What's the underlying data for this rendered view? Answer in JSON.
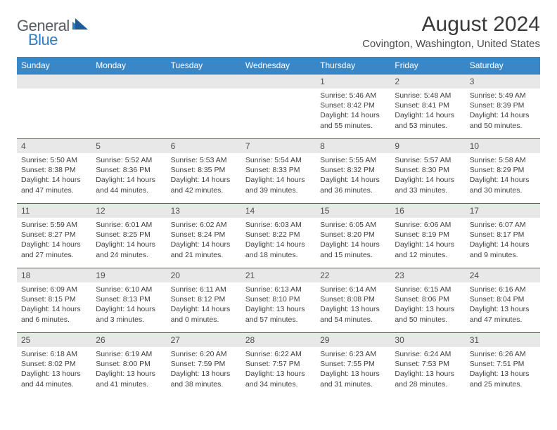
{
  "logo": {
    "general": "General",
    "blue": "Blue"
  },
  "title": "August 2024",
  "location": "Covington, Washington, United States",
  "colors": {
    "header_bg": "#3a87c8",
    "header_fg": "#ffffff",
    "daynum_bg": "#e8e8e8",
    "cell_border": "#3a6a9a",
    "logo_gray": "#555b61",
    "logo_blue": "#2f7bbf"
  },
  "days_of_week": [
    "Sunday",
    "Monday",
    "Tuesday",
    "Wednesday",
    "Thursday",
    "Friday",
    "Saturday"
  ],
  "weeks": [
    [
      null,
      null,
      null,
      null,
      {
        "d": "1",
        "sr": "5:46 AM",
        "ss": "8:42 PM",
        "dl": "14 hours and 55 minutes."
      },
      {
        "d": "2",
        "sr": "5:48 AM",
        "ss": "8:41 PM",
        "dl": "14 hours and 53 minutes."
      },
      {
        "d": "3",
        "sr": "5:49 AM",
        "ss": "8:39 PM",
        "dl": "14 hours and 50 minutes."
      }
    ],
    [
      {
        "d": "4",
        "sr": "5:50 AM",
        "ss": "8:38 PM",
        "dl": "14 hours and 47 minutes."
      },
      {
        "d": "5",
        "sr": "5:52 AM",
        "ss": "8:36 PM",
        "dl": "14 hours and 44 minutes."
      },
      {
        "d": "6",
        "sr": "5:53 AM",
        "ss": "8:35 PM",
        "dl": "14 hours and 42 minutes."
      },
      {
        "d": "7",
        "sr": "5:54 AM",
        "ss": "8:33 PM",
        "dl": "14 hours and 39 minutes."
      },
      {
        "d": "8",
        "sr": "5:55 AM",
        "ss": "8:32 PM",
        "dl": "14 hours and 36 minutes."
      },
      {
        "d": "9",
        "sr": "5:57 AM",
        "ss": "8:30 PM",
        "dl": "14 hours and 33 minutes."
      },
      {
        "d": "10",
        "sr": "5:58 AM",
        "ss": "8:29 PM",
        "dl": "14 hours and 30 minutes."
      }
    ],
    [
      {
        "d": "11",
        "sr": "5:59 AM",
        "ss": "8:27 PM",
        "dl": "14 hours and 27 minutes."
      },
      {
        "d": "12",
        "sr": "6:01 AM",
        "ss": "8:25 PM",
        "dl": "14 hours and 24 minutes."
      },
      {
        "d": "13",
        "sr": "6:02 AM",
        "ss": "8:24 PM",
        "dl": "14 hours and 21 minutes."
      },
      {
        "d": "14",
        "sr": "6:03 AM",
        "ss": "8:22 PM",
        "dl": "14 hours and 18 minutes."
      },
      {
        "d": "15",
        "sr": "6:05 AM",
        "ss": "8:20 PM",
        "dl": "14 hours and 15 minutes."
      },
      {
        "d": "16",
        "sr": "6:06 AM",
        "ss": "8:19 PM",
        "dl": "14 hours and 12 minutes."
      },
      {
        "d": "17",
        "sr": "6:07 AM",
        "ss": "8:17 PM",
        "dl": "14 hours and 9 minutes."
      }
    ],
    [
      {
        "d": "18",
        "sr": "6:09 AM",
        "ss": "8:15 PM",
        "dl": "14 hours and 6 minutes."
      },
      {
        "d": "19",
        "sr": "6:10 AM",
        "ss": "8:13 PM",
        "dl": "14 hours and 3 minutes."
      },
      {
        "d": "20",
        "sr": "6:11 AM",
        "ss": "8:12 PM",
        "dl": "14 hours and 0 minutes."
      },
      {
        "d": "21",
        "sr": "6:13 AM",
        "ss": "8:10 PM",
        "dl": "13 hours and 57 minutes."
      },
      {
        "d": "22",
        "sr": "6:14 AM",
        "ss": "8:08 PM",
        "dl": "13 hours and 54 minutes."
      },
      {
        "d": "23",
        "sr": "6:15 AM",
        "ss": "8:06 PM",
        "dl": "13 hours and 50 minutes."
      },
      {
        "d": "24",
        "sr": "6:16 AM",
        "ss": "8:04 PM",
        "dl": "13 hours and 47 minutes."
      }
    ],
    [
      {
        "d": "25",
        "sr": "6:18 AM",
        "ss": "8:02 PM",
        "dl": "13 hours and 44 minutes."
      },
      {
        "d": "26",
        "sr": "6:19 AM",
        "ss": "8:00 PM",
        "dl": "13 hours and 41 minutes."
      },
      {
        "d": "27",
        "sr": "6:20 AM",
        "ss": "7:59 PM",
        "dl": "13 hours and 38 minutes."
      },
      {
        "d": "28",
        "sr": "6:22 AM",
        "ss": "7:57 PM",
        "dl": "13 hours and 34 minutes."
      },
      {
        "d": "29",
        "sr": "6:23 AM",
        "ss": "7:55 PM",
        "dl": "13 hours and 31 minutes."
      },
      {
        "d": "30",
        "sr": "6:24 AM",
        "ss": "7:53 PM",
        "dl": "13 hours and 28 minutes."
      },
      {
        "d": "31",
        "sr": "6:26 AM",
        "ss": "7:51 PM",
        "dl": "13 hours and 25 minutes."
      }
    ]
  ],
  "labels": {
    "sunrise": "Sunrise:",
    "sunset": "Sunset:",
    "daylight": "Daylight:"
  }
}
